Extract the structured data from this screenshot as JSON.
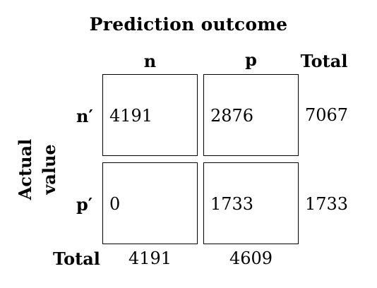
{
  "title": "Prediction outcome",
  "column_headers": [
    "n",
    "p",
    "Total"
  ],
  "row_axis_label": [
    "Actual",
    "value"
  ],
  "row_headers": [
    "n′",
    "p′"
  ],
  "row_total_label": "Total",
  "cells": [
    [
      "4191",
      "2876"
    ],
    [
      "0",
      "1733"
    ]
  ],
  "row_totals": [
    "7067",
    "1733"
  ],
  "column_totals": [
    "4191",
    "4609"
  ]
}
